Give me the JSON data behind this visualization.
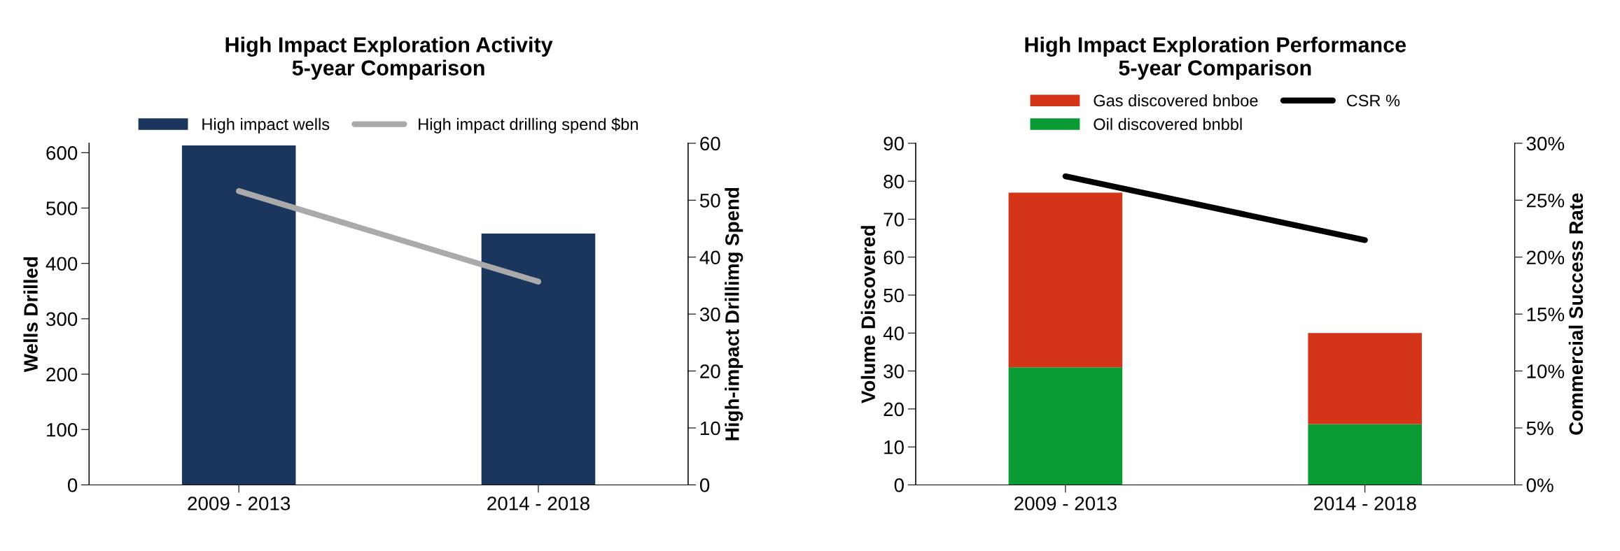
{
  "chart_data": [
    {
      "type": "bar",
      "title": "High Impact Exploration Activity\n5-year Comparison",
      "ylabel": "Wells Drilled",
      "y2label": "High-impact Drillimg Spend",
      "categories": [
        "2009 - 2013",
        "2014 - 2018"
      ],
      "series": [
        {
          "name": "High impact wells",
          "color": "#1b365d",
          "values": [
            613,
            454
          ]
        },
        {
          "name": "High impact drilling spend $bn",
          "type": "line",
          "axis": "y2",
          "color": "#aaaaaa",
          "values": [
            51.6,
            35.7
          ]
        }
      ],
      "ylim": [
        0,
        617
      ],
      "yticks": [
        0,
        100,
        200,
        300,
        400,
        500,
        600
      ],
      "y2lim": [
        0,
        60
      ],
      "y2ticks": [
        0,
        10,
        20,
        30,
        40,
        50,
        60
      ],
      "grid": false,
      "legend": "top"
    },
    {
      "type": "bar",
      "stacked": true,
      "title": "High Impact Exploration Performance\n5-year Comparison",
      "ylabel": "Volume Discovered",
      "y2label": "Commercial Success Rate",
      "categories": [
        "2009 - 2013",
        "2014 - 2018"
      ],
      "series": [
        {
          "name": "Oil discovered bnbbl",
          "color": "#0a9b34",
          "values": [
            31,
            16
          ]
        },
        {
          "name": "Gas discovered bnboe",
          "color": "#d43518",
          "values": [
            46,
            24
          ]
        },
        {
          "name": "CSR %",
          "type": "line",
          "axis": "y2",
          "color": "#000000",
          "values": [
            27.1,
            21.5
          ]
        }
      ],
      "ylim": [
        0,
        90
      ],
      "yticks": [
        0,
        10,
        20,
        30,
        40,
        50,
        60,
        70,
        80,
        90
      ],
      "y2lim": [
        0,
        30
      ],
      "y2ticks": [
        {
          "value": 0,
          "label": "0%"
        },
        {
          "value": 5,
          "label": "5%"
        },
        {
          "value": 10,
          "label": "10%"
        },
        {
          "value": 15,
          "label": "15%"
        },
        {
          "value": 20,
          "label": "20%"
        },
        {
          "value": 25,
          "label": "25%"
        },
        {
          "value": 30,
          "label": "30%"
        }
      ],
      "grid": false,
      "legend": "top"
    }
  ]
}
